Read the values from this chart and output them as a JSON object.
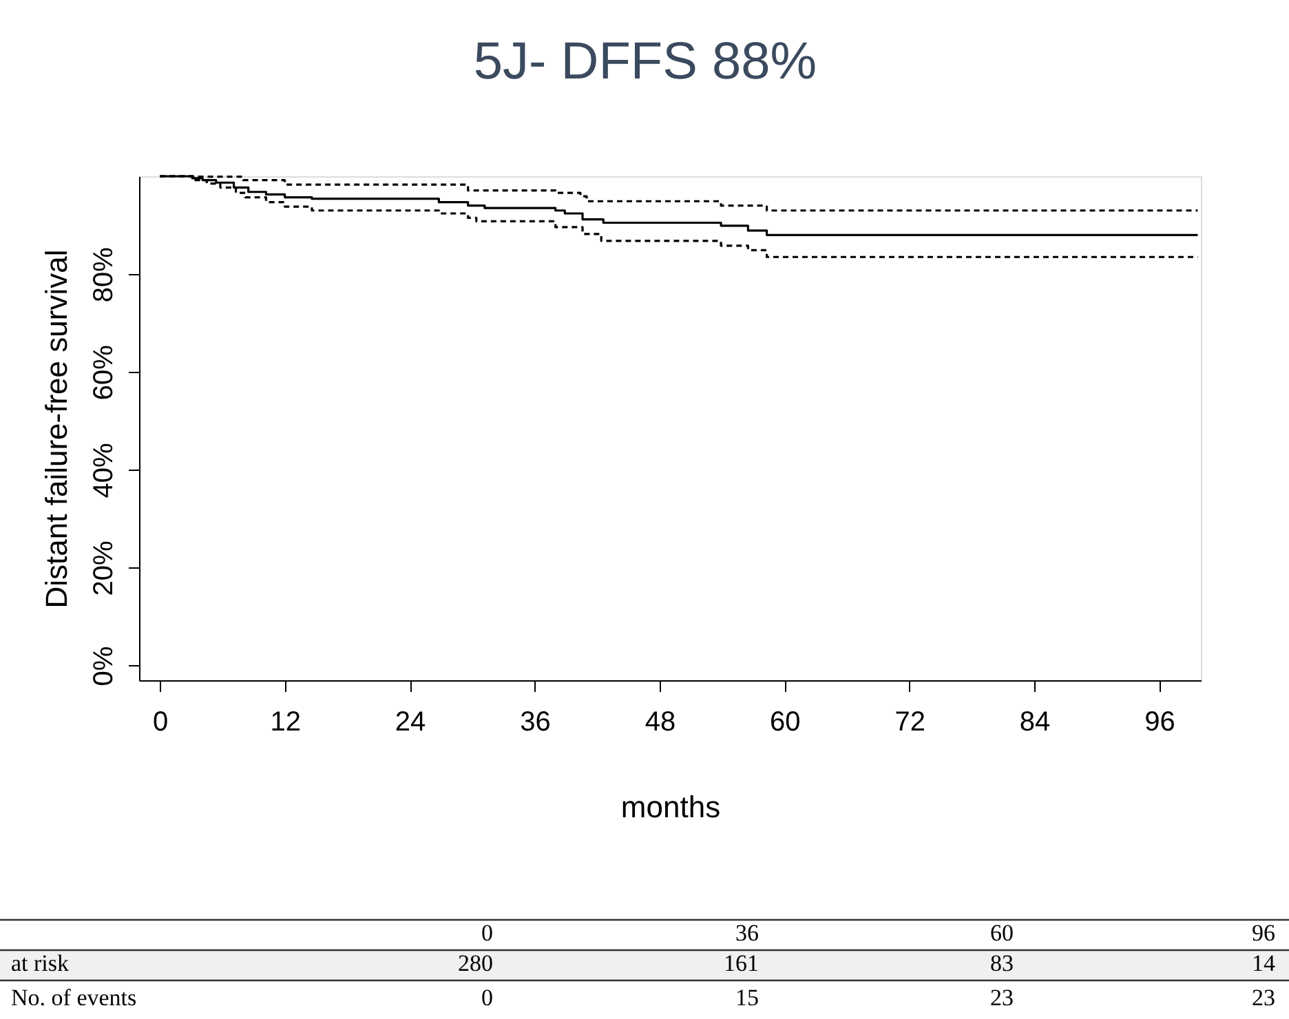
{
  "chart_data": {
    "type": "step",
    "title": "5J- DFFS 88%",
    "xlabel": "months",
    "ylabel": "Distant failure-free survival",
    "xlim": [
      -2,
      100
    ],
    "ylim": [
      -3,
      100
    ],
    "xticks": [
      0,
      12,
      24,
      36,
      48,
      60,
      72,
      84,
      96
    ],
    "yticks": [
      {
        "value": 0,
        "label": "0%"
      },
      {
        "value": 20,
        "label": "20%"
      },
      {
        "value": 40,
        "label": "40%"
      },
      {
        "value": 60,
        "label": "60%"
      },
      {
        "value": 80,
        "label": "80%"
      }
    ],
    "grid": false,
    "legend": false,
    "series": [
      {
        "color": "#000000",
        "line_style": "solid",
        "x": [
          0,
          3.1,
          4.1,
          5.4,
          7.1,
          8.5,
          10.2,
          12.0,
          14.6,
          26.8,
          29.6,
          31.2,
          38.0,
          38.9,
          40.6,
          42.6,
          53.9,
          56.5,
          58.3,
          99.7
        ],
        "values": [
          100,
          99.6,
          99.2,
          98.7,
          97.7,
          96.8,
          96.3,
          95.7,
          95.4,
          94.7,
          94.0,
          93.5,
          93.0,
          92.4,
          91.2,
          90.5,
          89.9,
          88.9,
          88.0,
          88.0
        ]
      },
      {
        "color": "#000000",
        "line_style": "dashed",
        "x": [
          0,
          3.2,
          8.0,
          12.0,
          29.6,
          38.0,
          40.4,
          41.0,
          53.9,
          58.3,
          99.7
        ],
        "values": [
          100,
          99.9,
          99.2,
          98.3,
          97.1,
          96.6,
          95.9,
          94.9,
          94.0,
          93.0,
          93.0
        ]
      },
      {
        "color": "#000000",
        "line_style": "dashed",
        "x": [
          0,
          3.2,
          4.5,
          5.8,
          7.3,
          8.2,
          10.2,
          12.0,
          14.6,
          26.8,
          29.6,
          30.4,
          38.0,
          40.6,
          42.4,
          53.9,
          56.5,
          58.3,
          99.7
        ],
        "values": [
          100,
          99.2,
          98.5,
          97.7,
          96.6,
          95.7,
          94.7,
          93.8,
          93.0,
          92.4,
          91.5,
          90.8,
          89.6,
          88.2,
          86.8,
          85.8,
          84.9,
          83.5,
          83.5
        ]
      }
    ],
    "annotations": [
      "0",
      "36",
      "60",
      "96",
      "at risk",
      "280",
      "161",
      "83",
      "14",
      "No.  of events",
      "0",
      "15",
      "23",
      "23"
    ]
  }
}
